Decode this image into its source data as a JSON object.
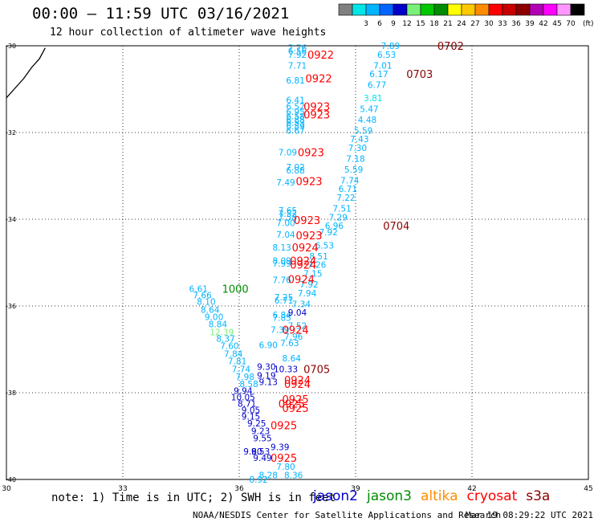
{
  "title": "00:00 – 11:59 UTC 03/16/2021",
  "subtitle": "12 hour collection of altimeter wave heights",
  "colorbar": {
    "unit": "(ft)",
    "bins": [
      {
        "color": "#808080",
        "label": ""
      },
      {
        "color": "#00e5e5",
        "label": "3"
      },
      {
        "color": "#00b4ff",
        "label": "6"
      },
      {
        "color": "#0064ff",
        "label": "9"
      },
      {
        "color": "#0000c8",
        "label": "12"
      },
      {
        "color": "#78f078",
        "label": "15"
      },
      {
        "color": "#00c800",
        "label": "18"
      },
      {
        "color": "#008c00",
        "label": "21"
      },
      {
        "color": "#ffff00",
        "label": "24"
      },
      {
        "color": "#ffc800",
        "label": "27"
      },
      {
        "color": "#ff8c00",
        "label": "30"
      },
      {
        "color": "#ff0000",
        "label": "33"
      },
      {
        "color": "#c80000",
        "label": "36"
      },
      {
        "color": "#8c0000",
        "label": "39"
      },
      {
        "color": "#b400b4",
        "label": "42"
      },
      {
        "color": "#ff00ff",
        "label": "45"
      },
      {
        "color": "#ff96ff",
        "label": "70"
      },
      {
        "color": "#000000",
        "label": ""
      }
    ]
  },
  "note": "note: 1) Time is in UTC; 2) SWH is in feet",
  "satellites": [
    {
      "name": "jason2",
      "color": "#0000cc"
    },
    {
      "name": "jason3",
      "color": "#008c00"
    },
    {
      "name": "altika",
      "color": "#ff8c00"
    },
    {
      "name": "cryosat",
      "color": "#ff0000"
    },
    {
      "name": "s3a",
      "color": "#8c0000"
    }
  ],
  "credit": "NOAA/NESDIS Center for Satellite Applications and Research",
  "timestamp": "Mar 19 08:29:22 UTC 2021",
  "chart_data": {
    "type": "scatter",
    "x_ticks": [
      "30",
      "33",
      "36",
      "39",
      "42",
      "45"
    ],
    "y_ticks": [
      "-30",
      "-32",
      "-34",
      "-36",
      "-38",
      "-40"
    ],
    "xlim": [
      30,
      45
    ],
    "ylim": [
      -40,
      -30
    ],
    "grid": true,
    "coastline": [
      [
        30.0,
        -31.2
      ],
      [
        30.2,
        -31.0
      ],
      [
        30.45,
        -30.75
      ],
      [
        30.65,
        -30.5
      ],
      [
        30.85,
        -30.3
      ],
      [
        31.0,
        -30.05
      ]
    ],
    "height_labels": [
      {
        "x": 37.5,
        "y": -30.05,
        "text": "7.76",
        "color": "#00b4ff"
      },
      {
        "x": 37.5,
        "y": -30.12,
        "text": "6.56",
        "color": "#00b4ff"
      },
      {
        "x": 37.5,
        "y": -30.2,
        "text": "7.92",
        "color": "#00b4ff"
      },
      {
        "x": 37.5,
        "y": -30.45,
        "text": "7.71",
        "color": "#00b4ff"
      },
      {
        "x": 37.45,
        "y": -30.8,
        "text": "6.81",
        "color": "#00b4ff"
      },
      {
        "x": 37.45,
        "y": -31.25,
        "text": "6.41",
        "color": "#00b4ff"
      },
      {
        "x": 37.45,
        "y": -31.4,
        "text": "6.52",
        "color": "#00b4ff"
      },
      {
        "x": 37.45,
        "y": -31.52,
        "text": "6.95",
        "color": "#00b4ff"
      },
      {
        "x": 37.45,
        "y": -31.62,
        "text": "6.58",
        "color": "#00b4ff"
      },
      {
        "x": 37.45,
        "y": -31.7,
        "text": "6.88",
        "color": "#00b4ff"
      },
      {
        "x": 37.45,
        "y": -31.77,
        "text": "6.53",
        "color": "#00b4ff"
      },
      {
        "x": 37.45,
        "y": -31.85,
        "text": "6.89",
        "color": "#00b4ff"
      },
      {
        "x": 37.45,
        "y": -31.95,
        "text": "6.67",
        "color": "#00b4ff"
      },
      {
        "x": 37.25,
        "y": -32.45,
        "text": "7.09",
        "color": "#00b4ff"
      },
      {
        "x": 37.45,
        "y": -32.8,
        "text": "7.02",
        "color": "#00b4ff"
      },
      {
        "x": 37.45,
        "y": -32.87,
        "text": "6.88",
        "color": "#00b4ff"
      },
      {
        "x": 37.2,
        "y": -33.15,
        "text": "7.49",
        "color": "#00b4ff"
      },
      {
        "x": 37.25,
        "y": -33.8,
        "text": "7.65",
        "color": "#00b4ff"
      },
      {
        "x": 37.25,
        "y": -33.87,
        "text": "7.52",
        "color": "#00b4ff"
      },
      {
        "x": 37.25,
        "y": -33.95,
        "text": "7.58",
        "color": "#00b4ff"
      },
      {
        "x": 37.2,
        "y": -34.08,
        "text": "7.00",
        "color": "#00b4ff"
      },
      {
        "x": 37.2,
        "y": -34.35,
        "text": "7.04",
        "color": "#00b4ff"
      },
      {
        "x": 37.1,
        "y": -34.65,
        "text": "8.13",
        "color": "#00b4ff"
      },
      {
        "x": 37.1,
        "y": -34.95,
        "text": "8.09",
        "color": "#00b4ff"
      },
      {
        "x": 37.1,
        "y": -35.02,
        "text": "7.99",
        "color": "#00b4ff"
      },
      {
        "x": 37.1,
        "y": -35.4,
        "text": "7.76",
        "color": "#00b4ff"
      },
      {
        "x": 37.15,
        "y": -35.8,
        "text": "7.25",
        "color": "#00b4ff"
      },
      {
        "x": 37.15,
        "y": -35.87,
        "text": "6.71",
        "color": "#00b4ff"
      },
      {
        "x": 37.1,
        "y": -36.2,
        "text": "6.84",
        "color": "#00b4ff"
      },
      {
        "x": 37.1,
        "y": -36.27,
        "text": "7.85",
        "color": "#00b4ff"
      },
      {
        "x": 37.05,
        "y": -36.55,
        "text": "7.39",
        "color": "#00b4ff"
      },
      {
        "x": 36.75,
        "y": -36.9,
        "text": "6.90",
        "color": "#00b4ff"
      },
      {
        "x": 34.95,
        "y": -35.6,
        "text": "6.61",
        "color": "#00b4ff"
      },
      {
        "x": 35.05,
        "y": -35.75,
        "text": "7.66",
        "color": "#00b4ff"
      },
      {
        "x": 35.15,
        "y": -35.9,
        "text": "8.10",
        "color": "#00b4ff"
      },
      {
        "x": 35.25,
        "y": -36.08,
        "text": "8.64",
        "color": "#00b4ff"
      },
      {
        "x": 35.35,
        "y": -36.25,
        "text": "9.00",
        "color": "#00b4ff"
      },
      {
        "x": 35.45,
        "y": -36.42,
        "text": "8.84",
        "color": "#00b4ff"
      },
      {
        "x": 35.55,
        "y": -36.6,
        "text": "12.39",
        "color": "#78f078"
      },
      {
        "x": 35.65,
        "y": -36.75,
        "text": "8.37",
        "color": "#00b4ff"
      },
      {
        "x": 35.75,
        "y": -36.92,
        "text": "7.60",
        "color": "#00b4ff"
      },
      {
        "x": 35.85,
        "y": -37.1,
        "text": "7.84",
        "color": "#00b4ff"
      },
      {
        "x": 35.95,
        "y": -37.27,
        "text": "7.81",
        "color": "#00b4ff"
      },
      {
        "x": 36.05,
        "y": -37.45,
        "text": "7.74",
        "color": "#00b4ff"
      },
      {
        "x": 36.15,
        "y": -37.63,
        "text": "7.98",
        "color": "#00b4ff"
      },
      {
        "x": 36.25,
        "y": -37.8,
        "text": "8.58",
        "color": "#00b4ff"
      },
      {
        "x": 36.1,
        "y": -37.95,
        "text": "9.94",
        "color": "#0000c8"
      },
      {
        "x": 36.1,
        "y": -38.1,
        "text": "10.05",
        "color": "#0000c8"
      },
      {
        "x": 36.2,
        "y": -38.25,
        "text": "8.71",
        "color": "#0000c8"
      },
      {
        "x": 36.3,
        "y": -38.4,
        "text": "9.05",
        "color": "#0000c8"
      },
      {
        "x": 36.3,
        "y": -38.55,
        "text": "9.15",
        "color": "#0000c8"
      },
      {
        "x": 36.45,
        "y": -38.7,
        "text": "9.25",
        "color": "#0000c8"
      },
      {
        "x": 36.55,
        "y": -38.88,
        "text": "9.23",
        "color": "#0000c8"
      },
      {
        "x": 36.6,
        "y": -39.05,
        "text": "9.55",
        "color": "#0000c8"
      },
      {
        "x": 36.55,
        "y": -39.35,
        "text": "9.53",
        "color": "#0000c8"
      },
      {
        "x": 36.6,
        "y": -39.5,
        "text": "9.49",
        "color": "#0000c8"
      },
      {
        "x": 36.35,
        "y": -39.35,
        "text": "9.80",
        "color": "#0000c8"
      },
      {
        "x": 36.7,
        "y": -37.4,
        "text": "9.30",
        "color": "#0000c8"
      },
      {
        "x": 36.7,
        "y": -37.6,
        "text": "9.19",
        "color": "#0000c8"
      },
      {
        "x": 36.75,
        "y": -37.75,
        "text": "9.13",
        "color": "#0000c8"
      },
      {
        "x": 37.2,
        "y": -37.45,
        "text": "10.33",
        "color": "#0000c8"
      },
      {
        "x": 37.5,
        "y": -36.15,
        "text": "9.04",
        "color": "#0000c8"
      },
      {
        "x": 37.35,
        "y": -37.2,
        "text": "8.64",
        "color": "#00b4ff"
      },
      {
        "x": 37.3,
        "y": -36.85,
        "text": "7.63",
        "color": "#00b4ff"
      },
      {
        "x": 37.4,
        "y": -36.7,
        "text": "7.96",
        "color": "#00b4ff"
      },
      {
        "x": 37.5,
        "y": -36.45,
        "text": "7.52",
        "color": "#00b4ff"
      },
      {
        "x": 37.6,
        "y": -35.95,
        "text": "7.34",
        "color": "#00b4ff"
      },
      {
        "x": 37.75,
        "y": -35.7,
        "text": "7.94",
        "color": "#00b4ff"
      },
      {
        "x": 37.8,
        "y": -35.5,
        "text": "7.92",
        "color": "#00b4ff"
      },
      {
        "x": 37.9,
        "y": -35.25,
        "text": "7.15",
        "color": "#00b4ff"
      },
      {
        "x": 38.0,
        "y": -35.05,
        "text": "7.26",
        "color": "#00b4ff"
      },
      {
        "x": 38.05,
        "y": -34.85,
        "text": "8.51",
        "color": "#00b4ff"
      },
      {
        "x": 38.2,
        "y": -34.6,
        "text": "6.53",
        "color": "#00b4ff"
      },
      {
        "x": 38.3,
        "y": -34.3,
        "text": "7.92",
        "color": "#00b4ff"
      },
      {
        "x": 38.45,
        "y": -34.15,
        "text": "6.96",
        "color": "#00b4ff"
      },
      {
        "x": 38.55,
        "y": -33.95,
        "text": "7.29",
        "color": "#00b4ff"
      },
      {
        "x": 38.65,
        "y": -33.75,
        "text": "7.51",
        "color": "#00b4ff"
      },
      {
        "x": 38.75,
        "y": -33.5,
        "text": "7.22",
        "color": "#00b4ff"
      },
      {
        "x": 38.8,
        "y": -33.3,
        "text": "6.71",
        "color": "#00b4ff"
      },
      {
        "x": 38.85,
        "y": -33.1,
        "text": "7.74",
        "color": "#00b4ff"
      },
      {
        "x": 38.95,
        "y": -32.85,
        "text": "5.59",
        "color": "#00b4ff"
      },
      {
        "x": 39.0,
        "y": -32.6,
        "text": "7.18",
        "color": "#00b4ff"
      },
      {
        "x": 39.05,
        "y": -32.35,
        "text": "7.30",
        "color": "#00b4ff"
      },
      {
        "x": 39.1,
        "y": -32.15,
        "text": "7.43",
        "color": "#00b4ff"
      },
      {
        "x": 39.2,
        "y": -31.95,
        "text": "5.59",
        "color": "#00b4ff"
      },
      {
        "x": 39.3,
        "y": -31.7,
        "text": "4.48",
        "color": "#00b4ff"
      },
      {
        "x": 39.35,
        "y": -31.45,
        "text": "5.47",
        "color": "#00b4ff"
      },
      {
        "x": 39.45,
        "y": -31.2,
        "text": "3.81",
        "color": "#00e5e5"
      },
      {
        "x": 39.55,
        "y": -30.9,
        "text": "6.77",
        "color": "#00b4ff"
      },
      {
        "x": 39.6,
        "y": -30.65,
        "text": "6.17",
        "color": "#00b4ff"
      },
      {
        "x": 39.7,
        "y": -30.45,
        "text": "7.01",
        "color": "#00b4ff"
      },
      {
        "x": 39.8,
        "y": -30.2,
        "text": "6.53",
        "color": "#00b4ff"
      },
      {
        "x": 39.9,
        "y": -30.0,
        "text": "7.89",
        "color": "#00b4ff"
      },
      {
        "x": 37.2,
        "y": -39.7,
        "text": "7.80",
        "color": "#00b4ff"
      },
      {
        "x": 37.4,
        "y": -39.9,
        "text": "8.36",
        "color": "#00b4ff"
      },
      {
        "x": 36.75,
        "y": -39.9,
        "text": "8.28",
        "color": "#00b4ff"
      },
      {
        "x": 36.5,
        "y": -40.0,
        "text": "8.92",
        "color": "#00b4ff"
      },
      {
        "x": 37.05,
        "y": -39.25,
        "text": "9.39",
        "color": "#0000c8"
      }
    ],
    "time_labels": [
      {
        "x": 41.45,
        "y": -30.0,
        "text": "0702",
        "color": "#8c0000"
      },
      {
        "x": 38.1,
        "y": -30.2,
        "text": "0922",
        "color": "#ff0000"
      },
      {
        "x": 40.65,
        "y": -30.65,
        "text": "0703",
        "color": "#8c0000"
      },
      {
        "x": 38.05,
        "y": -30.75,
        "text": "0922",
        "color": "#ff0000"
      },
      {
        "x": 38.0,
        "y": -31.4,
        "text": "0923",
        "color": "#ff0000"
      },
      {
        "x": 38.0,
        "y": -31.58,
        "text": "0923",
        "color": "#ff0000"
      },
      {
        "x": 37.85,
        "y": -32.45,
        "text": "0923",
        "color": "#ff0000"
      },
      {
        "x": 37.8,
        "y": -33.12,
        "text": "0923",
        "color": "#ff0000"
      },
      {
        "x": 37.75,
        "y": -34.02,
        "text": "0923",
        "color": "#ff0000"
      },
      {
        "x": 40.05,
        "y": -34.15,
        "text": "0704",
        "color": "#8c0000"
      },
      {
        "x": 37.8,
        "y": -34.37,
        "text": "0923",
        "color": "#ff0000"
      },
      {
        "x": 37.7,
        "y": -34.65,
        "text": "0924",
        "color": "#ff0000"
      },
      {
        "x": 37.65,
        "y": -34.95,
        "text": "0924",
        "color": "#ff0000"
      },
      {
        "x": 37.65,
        "y": -35.05,
        "text": "0924",
        "color": "#ff0000"
      },
      {
        "x": 37.6,
        "y": -35.38,
        "text": "0924",
        "color": "#ff0000"
      },
      {
        "x": 37.45,
        "y": -36.55,
        "text": "0924",
        "color": "#ff0000"
      },
      {
        "x": 35.9,
        "y": -35.6,
        "text": "1000",
        "color": "#008c00"
      },
      {
        "x": 38.0,
        "y": -37.45,
        "text": "0705",
        "color": "#8c0000"
      },
      {
        "x": 37.5,
        "y": -37.7,
        "text": "0924",
        "color": "#ff0000"
      },
      {
        "x": 37.5,
        "y": -37.8,
        "text": "0924",
        "color": "#ff0000"
      },
      {
        "x": 37.45,
        "y": -38.15,
        "text": "0925",
        "color": "#ff0000"
      },
      {
        "x": 37.35,
        "y": -38.25,
        "text": "0925",
        "color": "#ff0000"
      },
      {
        "x": 37.45,
        "y": -38.35,
        "text": "0925",
        "color": "#ff0000"
      },
      {
        "x": 37.15,
        "y": -38.75,
        "text": "0925",
        "color": "#ff0000"
      },
      {
        "x": 37.15,
        "y": -39.5,
        "text": "0925",
        "color": "#ff0000"
      }
    ]
  }
}
